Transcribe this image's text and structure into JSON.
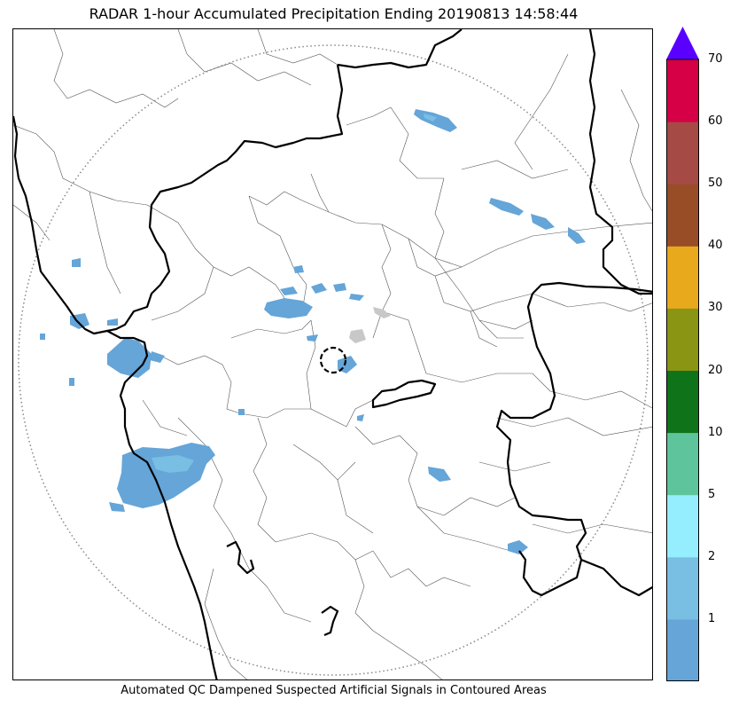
{
  "title": "RADAR 1-hour Accumulated Precipitation Ending 20190813 14:58:44",
  "caption": "Automated QC Dampened Suspected Artificial Signals in Contoured Areas",
  "colorbar": {
    "segments": [
      {
        "color": "#65a5d8"
      },
      {
        "color": "#78bfe3"
      },
      {
        "color": "#95eefe"
      },
      {
        "color": "#5ec49b"
      },
      {
        "color": "#0f7419"
      },
      {
        "color": "#8a9514"
      },
      {
        "color": "#e8a91c"
      },
      {
        "color": "#994d26"
      },
      {
        "color": "#a64a46"
      },
      {
        "color": "#d60046"
      }
    ],
    "extend_color": "#5a00ff",
    "tick_labels": [
      "1",
      "2",
      "5",
      "10",
      "20",
      "30",
      "40",
      "50",
      "60",
      "70"
    ]
  },
  "map": {
    "precip_color": "#65a5d8",
    "precip_light_color": "#78bfe3",
    "dampened_color": "#c8c8c8",
    "state_border_color": "#000000",
    "district_border_color": "#555555",
    "range_ring_color": "#888888"
  }
}
